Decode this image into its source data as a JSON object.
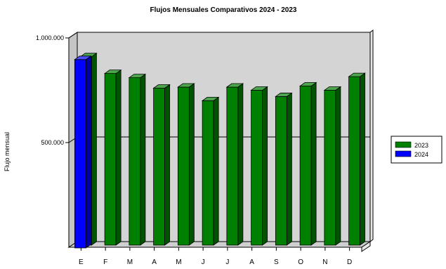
{
  "chart_data": {
    "type": "bar",
    "title": "Flujos Mensuales Comparativos 2024 - 2023",
    "ylabel": "Flujo mensual",
    "xlabel": "",
    "categories": [
      "E",
      "F",
      "M",
      "A",
      "M",
      "J",
      "J",
      "A",
      "S",
      "O",
      "N",
      "D"
    ],
    "ylim": [
      0,
      1000000
    ],
    "yticks": [
      {
        "value": 500000,
        "label": "500.000"
      },
      {
        "value": 1000000,
        "label": "1.000.000"
      }
    ],
    "series": [
      {
        "name": "2023",
        "color": "#008000",
        "values": [
          900000,
          820000,
          800000,
          750000,
          755000,
          690000,
          755000,
          740000,
          710000,
          760000,
          740000,
          805000
        ]
      },
      {
        "name": "2024",
        "color": "#0000ff",
        "values": [
          900000,
          null,
          null,
          null,
          null,
          null,
          null,
          null,
          null,
          null,
          null,
          null
        ]
      }
    ],
    "grid": "horizontal",
    "legend_position": "right",
    "style": "3d",
    "wall_color": "#d4d4d4"
  }
}
